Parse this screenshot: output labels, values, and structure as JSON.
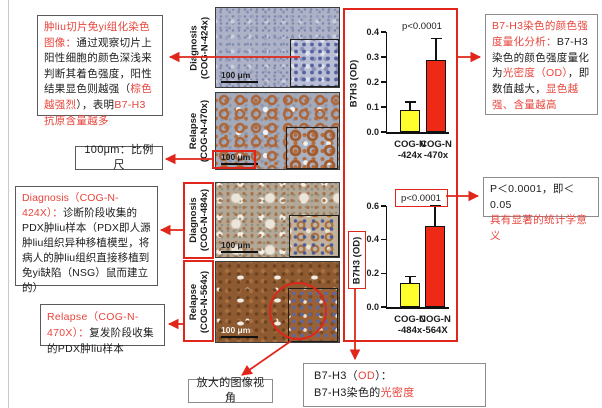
{
  "colors": {
    "accent_red": "#e0261a",
    "red_text": "#e8453c",
    "text": "#1b1b1b",
    "bar_yellow": "#ffff2e",
    "bar_red": "#ee2a16"
  },
  "annotations": {
    "box_stain_explain": {
      "lines": [
        [
          {
            "t": "肿liu切片免yi组化染色图像：",
            "c": "r"
          },
          {
            "t": "通过观察切片上阳性细胞的颜色深浅来判断其着色强度，阳性结果显色则越强（",
            "c": "k"
          },
          {
            "t": "棕色越强烈",
            "c": "r"
          },
          {
            "t": "），表明",
            "c": "k"
          },
          {
            "t": "B7-H3抗原含量越多",
            "c": "r"
          }
        ]
      ]
    },
    "box_scalebar": {
      "lines": [
        [
          {
            "t": "100μm：比例尺",
            "c": "k"
          }
        ]
      ]
    },
    "box_diagnosis": {
      "lines": [
        [
          {
            "t": "Diagnosis（COG-N-424X）：",
            "c": "r"
          },
          {
            "t": "诊断阶段收集的PDX肿liu样本（PDX即人源肿liu组织异种移植模型，将病人的肿liu组织直接移植到免yi缺陷（NSG）鼠而建立的）",
            "c": "k"
          }
        ]
      ]
    },
    "box_relapse": {
      "lines": [
        [
          {
            "t": "Relapse（COG-N-470X）：",
            "c": "r"
          },
          {
            "t": "复发阶段收集的PDX肿liu样本",
            "c": "k"
          }
        ]
      ]
    },
    "box_zoom_view": {
      "lines": [
        [
          {
            "t": "放大的图像视角",
            "c": "k"
          }
        ]
      ]
    },
    "box_od": {
      "lines": [
        [
          {
            "t": "B7-H3（",
            "c": "k"
          },
          {
            "t": "OD",
            "c": "r"
          },
          {
            "t": "）：",
            "c": "k"
          }
        ],
        [
          {
            "t": "B7-H3染色的",
            "c": "k"
          },
          {
            "t": "光密度",
            "c": "r"
          }
        ]
      ]
    },
    "box_quantify": {
      "lines": [
        [
          {
            "t": "B7-H3染色的颜色强度量化分析：",
            "c": "r"
          },
          {
            "t": "B7-H3染色的颜色强度量化为",
            "c": "k"
          },
          {
            "t": "光密度（OD）",
            "c": "r"
          },
          {
            "t": "，即数值越大，",
            "c": "k"
          },
          {
            "t": "显色越强、含量越高",
            "c": "r"
          }
        ]
      ]
    },
    "box_pvalue": {
      "lines": [
        [
          {
            "t": "P＜0.0001，即＜0.05",
            "c": "k"
          }
        ],
        [
          {
            "t": "具有显著的统计学意义",
            "c": "r"
          }
        ]
      ]
    }
  },
  "figure": {
    "panels": [
      {
        "stage": "Diagnosis",
        "model": "(COG-N-424x)",
        "scale_bar": "100 μm"
      },
      {
        "stage": "Relapse",
        "model": "(COG-N-470x)",
        "scale_bar": "100 μm"
      },
      {
        "stage": "Diagnosis",
        "model": "(COG-N-484x)",
        "scale_bar": "100 μm"
      },
      {
        "stage": "Relapse",
        "model": "(COG-N-564x)",
        "scale_bar": "100 μm"
      }
    ]
  },
  "chart_data": [
    {
      "type": "bar",
      "p_label": "p<0.0001",
      "ylabel": "B7H3 (OD)",
      "categories": [
        [
          "COG-N",
          "-424x"
        ],
        [
          "COG-N",
          "-470x"
        ]
      ],
      "values": [
        0.09,
        0.29
      ],
      "errors_plus": [
        0.03,
        0.085
      ],
      "bar_colors": [
        "#ffff2e",
        "#ee2a16"
      ],
      "ylim": [
        0,
        0.4
      ],
      "ytick_labels": [
        "0.0",
        "0.1",
        "0.2",
        "0.3",
        "0.4"
      ],
      "p_label_boxed": false,
      "ylabel_boxed": false,
      "legend": "none",
      "grid": false
    },
    {
      "type": "bar",
      "p_label": "p<0.0001",
      "ylabel": "B7H3 (OD)",
      "categories": [
        [
          "COG-N",
          "-484x"
        ],
        [
          "COG-N",
          "-564X"
        ]
      ],
      "values": [
        0.14,
        0.48
      ],
      "errors_plus": [
        0.04,
        0.12
      ],
      "bar_colors": [
        "#ffff2e",
        "#ee2a16"
      ],
      "ylim": [
        0,
        0.6
      ],
      "ytick_labels": [
        "0.0",
        "0.2",
        "0.4",
        "0.6"
      ],
      "p_label_boxed": true,
      "ylabel_boxed": true,
      "legend": "none",
      "grid": false
    }
  ]
}
